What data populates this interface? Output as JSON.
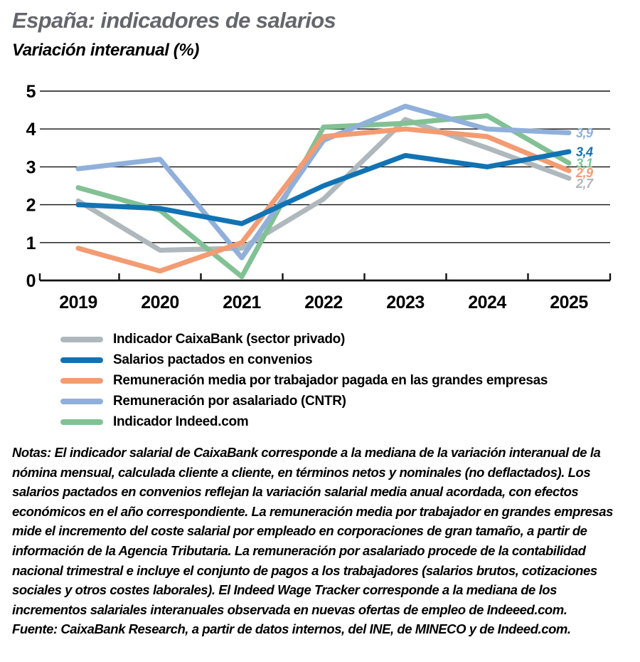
{
  "chart_data": {
    "type": "line",
    "title": "España: indicadores de salarios",
    "ylabel": "Variación interanual (%)",
    "x": [
      2019,
      2020,
      2021,
      2022,
      2023,
      2024,
      2025
    ],
    "ylim": [
      0,
      5
    ],
    "yticks": [
      0,
      1,
      2,
      3,
      4,
      5
    ],
    "grid": "horizontal",
    "legend_position": "below",
    "series": [
      {
        "key": "caixabank",
        "name": "Indicador CaixaBank (sector privado)",
        "color": "#afb8bc",
        "values": [
          2.1,
          0.8,
          0.85,
          2.15,
          4.25,
          3.5,
          2.7
        ],
        "end_label": "2,7",
        "end_label_dy": 7
      },
      {
        "key": "convenios",
        "name": "Salarios pactados en convenios",
        "color": "#1173b4",
        "values": [
          2.0,
          1.9,
          1.5,
          2.5,
          3.3,
          3.0,
          3.4
        ],
        "end_label": "3,4",
        "end_label_dy": 0
      },
      {
        "key": "grandes-empresas",
        "name": "Remuneración media por trabajador pagada en las grandes empresas",
        "color": "#f39b72",
        "values": [
          0.85,
          0.25,
          1.0,
          3.8,
          4.0,
          3.8,
          2.9
        ],
        "end_label": "2,9",
        "end_label_dy": 3
      },
      {
        "key": "cntr",
        "name": "Remuneración por asalariado (CNTR)",
        "color": "#90b0da",
        "values": [
          2.95,
          3.2,
          0.6,
          3.7,
          4.6,
          4.0,
          3.9
        ],
        "end_label": "3,9",
        "end_label_dy": 0
      },
      {
        "key": "indeed",
        "name": "Indicador Indeed.com",
        "color": "#82c194",
        "values": [
          2.45,
          1.85,
          0.1,
          4.05,
          4.15,
          4.35,
          3.1
        ],
        "end_label": "3,1",
        "end_label_dy": 0
      }
    ],
    "draw_order": [
      "caixabank",
      "indeed",
      "cntr",
      "grandes-empresas",
      "convenios"
    ]
  },
  "notes": {
    "label": "Notas:",
    "text": "El indicador salarial de CaixaBank corresponde a la mediana de la variación interanual de la nómina mensual, calculada cliente a cliente, en términos netos y nominales (no deflactados). Los salarios pactados en convenios reflejan la variación salarial media anual acordada, con efectos económicos en el año correspondiente. La remuneración media por trabajador en grandes empresas mide el incremento del coste salarial por empleado en corporaciones de gran tamaño, a partir de información de la Agencia Tributaria. La remuneración por asalariado procede de la contabilidad nacional trimestral e incluye el conjunto de pagos a los trabajadores (salarios brutos, cotizaciones sociales y otros costes laborales). El Indeed Wage Tracker corresponde a la mediana de los incrementos salariales interanuales observada en nuevas ofertas de empleo de Indeeed.com."
  },
  "source": {
    "label": "Fuente:",
    "text": "CaixaBank Research, a partir de datos internos, del INE, de MINECO y de Indeed.com."
  }
}
